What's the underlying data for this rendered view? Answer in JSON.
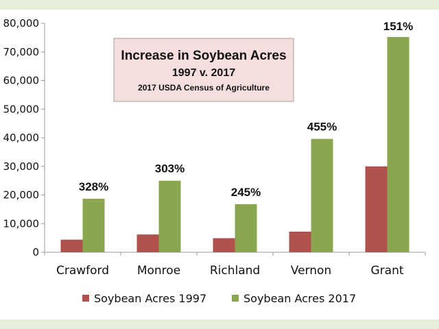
{
  "chart_data": {
    "type": "bar",
    "title": "Increase in Soybean Acres",
    "subtitle": "1997 v. 2017",
    "source": "2017 USDA Census of Agriculture",
    "categories": [
      "Crawford",
      "Monroe",
      "Richland",
      "Vernon",
      "Grant"
    ],
    "series": [
      {
        "name": "Soybean Acres 1997",
        "color": "#b0514e",
        "values": [
          4400,
          6200,
          4900,
          7200,
          30000
        ]
      },
      {
        "name": "Soybean Acres 2017",
        "color": "#8aa64e",
        "values": [
          18700,
          25000,
          16800,
          39600,
          75200
        ]
      }
    ],
    "data_labels": [
      "328%",
      "303%",
      "245%",
      "455%",
      "151%"
    ],
    "ylim": [
      0,
      80000
    ],
    "yticks": [
      0,
      10000,
      20000,
      30000,
      40000,
      50000,
      60000,
      70000,
      80000
    ],
    "ytick_labels": [
      "0",
      "10,000",
      "20,000",
      "30,000",
      "40,000",
      "50,000",
      "60,000",
      "70,000",
      "80,000"
    ],
    "xlabel": "",
    "ylabel": "",
    "grid": false,
    "legend_position": "bottom"
  }
}
